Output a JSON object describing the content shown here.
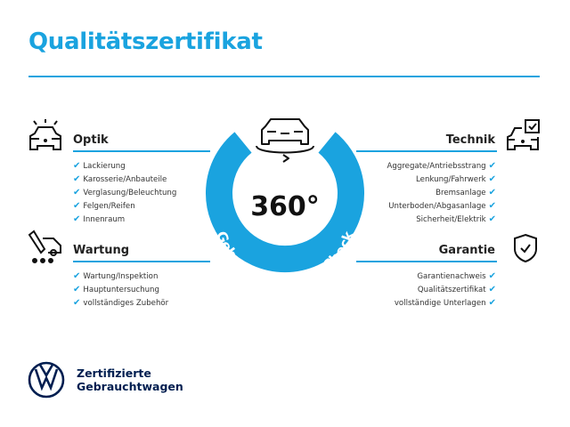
{
  "title": "Qualitätszertifikat",
  "accent_color": "#1aa3df",
  "brand_color": "#001e50",
  "badge": {
    "number": "360°",
    "ring_text": "Gebrauchtwagen-Check",
    "icon": "car-rotate-icon"
  },
  "sections": {
    "optik": {
      "heading": "Optik",
      "icon": "car-lights-icon",
      "items": [
        "Lackierung",
        "Karosserie/Anbauteile",
        "Verglasung/Beleuchtung",
        "Felgen/Reifen",
        "Innenraum"
      ]
    },
    "wartung": {
      "heading": "Wartung",
      "icon": "service-car-icon",
      "items": [
        "Wartung/Inspektion",
        "Hauptuntersuchung",
        "vollständiges Zubehör"
      ]
    },
    "technik": {
      "heading": "Technik",
      "icon": "car-checklist-icon",
      "items": [
        "Aggregate/Antriebsstrang",
        "Lenkung/Fahrwerk",
        "Bremsanlage",
        "Unterboden/Abgasanlage",
        "Sicherheit/Elektrik"
      ]
    },
    "garantie": {
      "heading": "Garantie",
      "icon": "shield-check-icon",
      "items": [
        "Garantienachweis",
        "Qualitätszertifikat",
        "vollständige Unterlagen"
      ]
    }
  },
  "check_glyph": "✔",
  "brand": {
    "line1": "Zertifizierte",
    "line2": "Gebrauchtwagen",
    "logo": "vw-logo"
  }
}
